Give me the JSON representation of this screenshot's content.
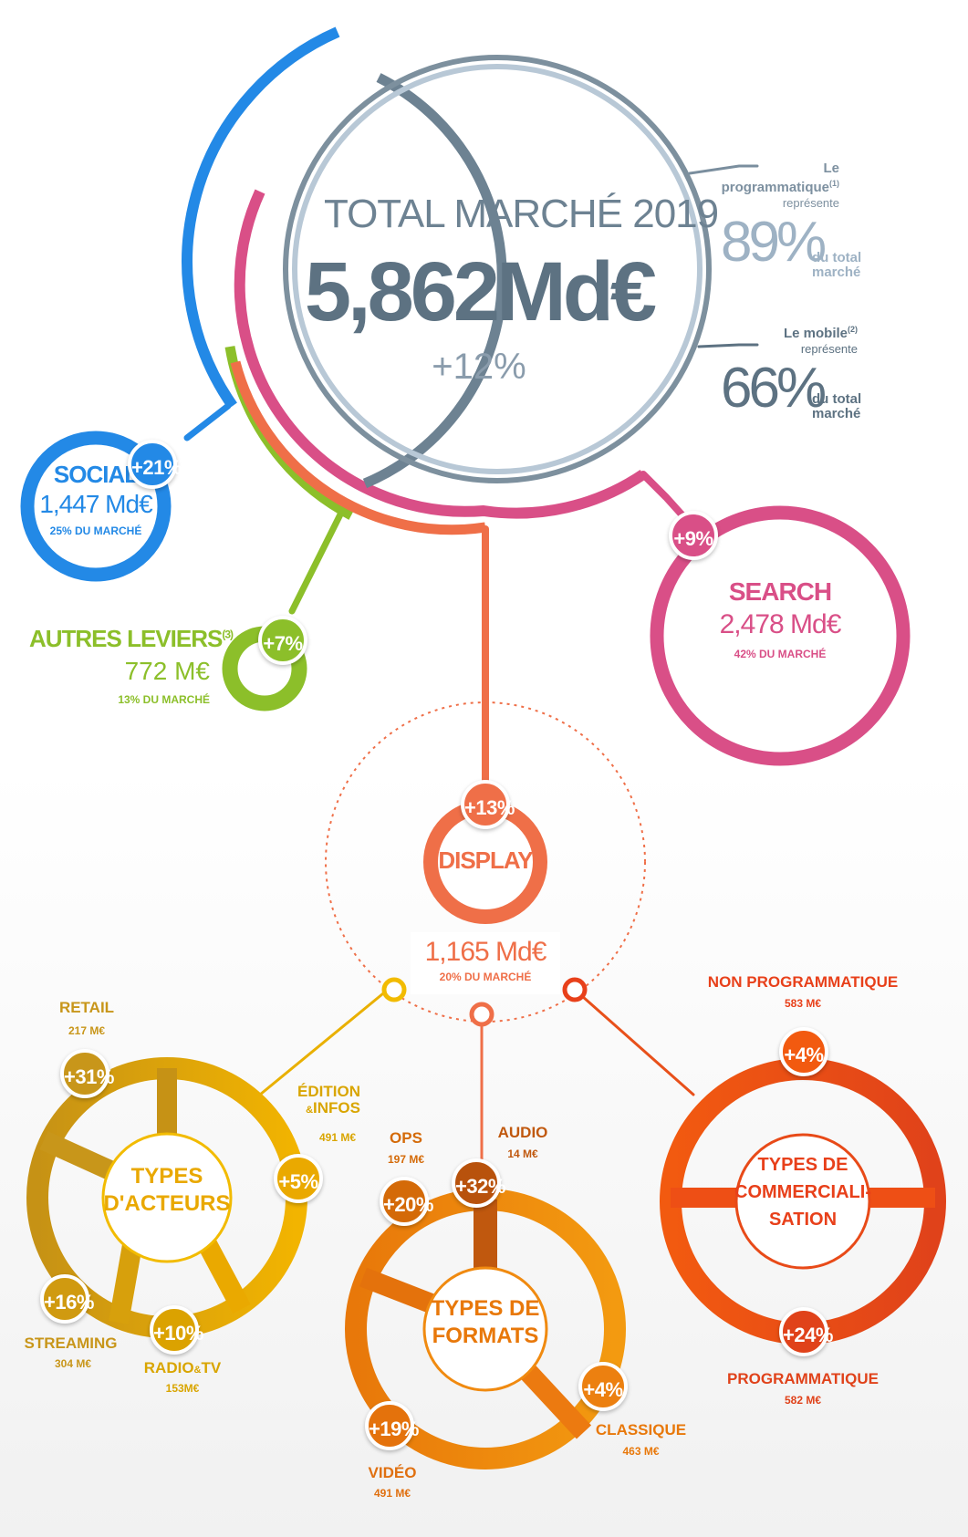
{
  "colors": {
    "social": "#2389e6",
    "search": "#d94f87",
    "autres": "#8cbf2a",
    "display": "#ef6f48",
    "total_dark": "#5d7282",
    "total_light": "#9eb2c4",
    "acteurs": "#e9b000",
    "acteurs_dark": "#c78f10",
    "formats": "#f08a10",
    "formats_dark": "#d46a08",
    "commerc": "#f05015",
    "commerc_dark": "#d8400e"
  },
  "total": {
    "title": "TOTAL MARCHÉ 2019",
    "value": "5,862Md€",
    "growth": "+12%"
  },
  "programmatique": {
    "line1": "Le",
    "line2": "programmatique",
    "note": "(1)",
    "line3": "représente",
    "value": "89%",
    "line4": "du total",
    "line5": "marché"
  },
  "mobile": {
    "line1": "Le mobile",
    "note": "(2)",
    "line2": "représente",
    "value": "66%",
    "line3": "du total",
    "line4": "marché"
  },
  "social": {
    "name": "SOCIAL",
    "value": "1,447 Md€",
    "share": "25% DU MARCHÉ",
    "badge": "+21%"
  },
  "search": {
    "name": "SEARCH",
    "value": "2,478 Md€",
    "share": "42% DU MARCHÉ",
    "badge": "+9%"
  },
  "autres": {
    "name": "AUTRES LEVIERS",
    "note": "(3)",
    "value": "772 M€",
    "share": "13% DU MARCHÉ",
    "badge": "+7%"
  },
  "display": {
    "name": "DISPLAY",
    "value": "1,165 Md€",
    "share": "20% DU MARCHÉ",
    "badge": "+13%"
  },
  "acteurs": {
    "center_line1": "TYPES",
    "center_line2": "D'ACTEURS",
    "retail": {
      "name": "RETAIL",
      "value": "217 M€",
      "badge": "+31%"
    },
    "edition": {
      "name1": "ÉDITION",
      "amp": "&",
      "name2": "INFOS",
      "value": "491 M€",
      "badge": "+5%"
    },
    "streaming": {
      "name": "STREAMING",
      "value": "304 M€",
      "badge": "+16%"
    },
    "radio": {
      "name1": "RADIO",
      "amp": "&",
      "name2": "TV",
      "value": "153M€",
      "badge": "+10%"
    }
  },
  "formats": {
    "center_line1": "TYPES DE",
    "center_line2": "FORMATS",
    "ops": {
      "name": "OPS",
      "value": "197 M€",
      "badge": "+20%"
    },
    "audio": {
      "name": "AUDIO",
      "value": "14 M€",
      "badge": "+32%"
    },
    "classique": {
      "name": "CLASSIQUE",
      "value": "463 M€",
      "badge": "+4%"
    },
    "video": {
      "name": "VIDÉO",
      "value": "491 M€",
      "badge": "+19%"
    }
  },
  "commerc": {
    "center_line1": "TYPES DE",
    "center_line2": "COMMERCIALI-",
    "center_line3": "SATION",
    "non_prog": {
      "name": "NON PROGRAMMATIQUE",
      "value": "583 M€",
      "badge": "+4%"
    },
    "prog": {
      "name": "PROGRAMMATIQUE",
      "value": "582 M€",
      "badge": "+24%"
    }
  }
}
